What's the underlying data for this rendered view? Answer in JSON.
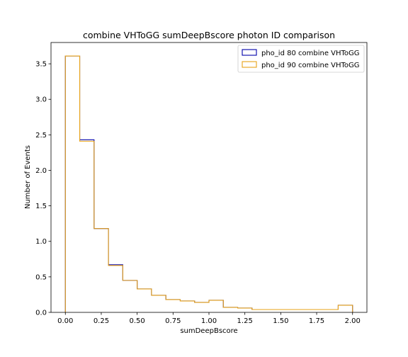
{
  "chart_data": {
    "type": "histogram",
    "title": "combine VHToGG sumDeepBscore photon ID comparison",
    "xlabel": "sumDeepBscore",
    "ylabel": "Number of Events",
    "xlim": [
      -0.1,
      2.1
    ],
    "ylim": [
      0,
      3.8
    ],
    "xticks": [
      0.0,
      0.25,
      0.5,
      0.75,
      1.0,
      1.25,
      1.5,
      1.75,
      2.0
    ],
    "xtick_labels": [
      "0.00",
      "0.25",
      "0.50",
      "0.75",
      "1.00",
      "1.25",
      "1.50",
      "1.75",
      "2.00"
    ],
    "yticks": [
      0.0,
      0.5,
      1.0,
      1.5,
      2.0,
      2.5,
      3.0,
      3.5
    ],
    "ytick_labels": [
      "0.0",
      "0.5",
      "1.0",
      "1.5",
      "2.0",
      "2.5",
      "3.0",
      "3.5"
    ],
    "bin_edges": [
      0.0,
      0.1,
      0.2,
      0.3,
      0.4,
      0.5,
      0.6,
      0.7,
      0.8,
      0.9,
      1.0,
      1.1,
      1.2,
      1.3,
      1.4,
      1.5,
      1.6,
      1.7,
      1.8,
      1.9,
      2.0
    ],
    "legend_position": "top-right",
    "grid": false,
    "series": [
      {
        "name": "pho_id 80 combine VHToGG",
        "color": "#0000aa",
        "values": [
          3.61,
          2.43,
          1.18,
          0.67,
          0.45,
          0.33,
          0.24,
          0.18,
          0.16,
          0.14,
          0.17,
          0.07,
          0.06,
          0.04,
          0.04,
          0.04,
          0.04,
          0.04,
          0.04,
          0.1
        ]
      },
      {
        "name": "pho_id 90 combine VHToGG",
        "color": "#e8a317",
        "values": [
          3.61,
          2.41,
          1.18,
          0.66,
          0.45,
          0.33,
          0.24,
          0.18,
          0.16,
          0.14,
          0.17,
          0.07,
          0.06,
          0.04,
          0.04,
          0.04,
          0.04,
          0.04,
          0.04,
          0.1
        ]
      }
    ]
  }
}
